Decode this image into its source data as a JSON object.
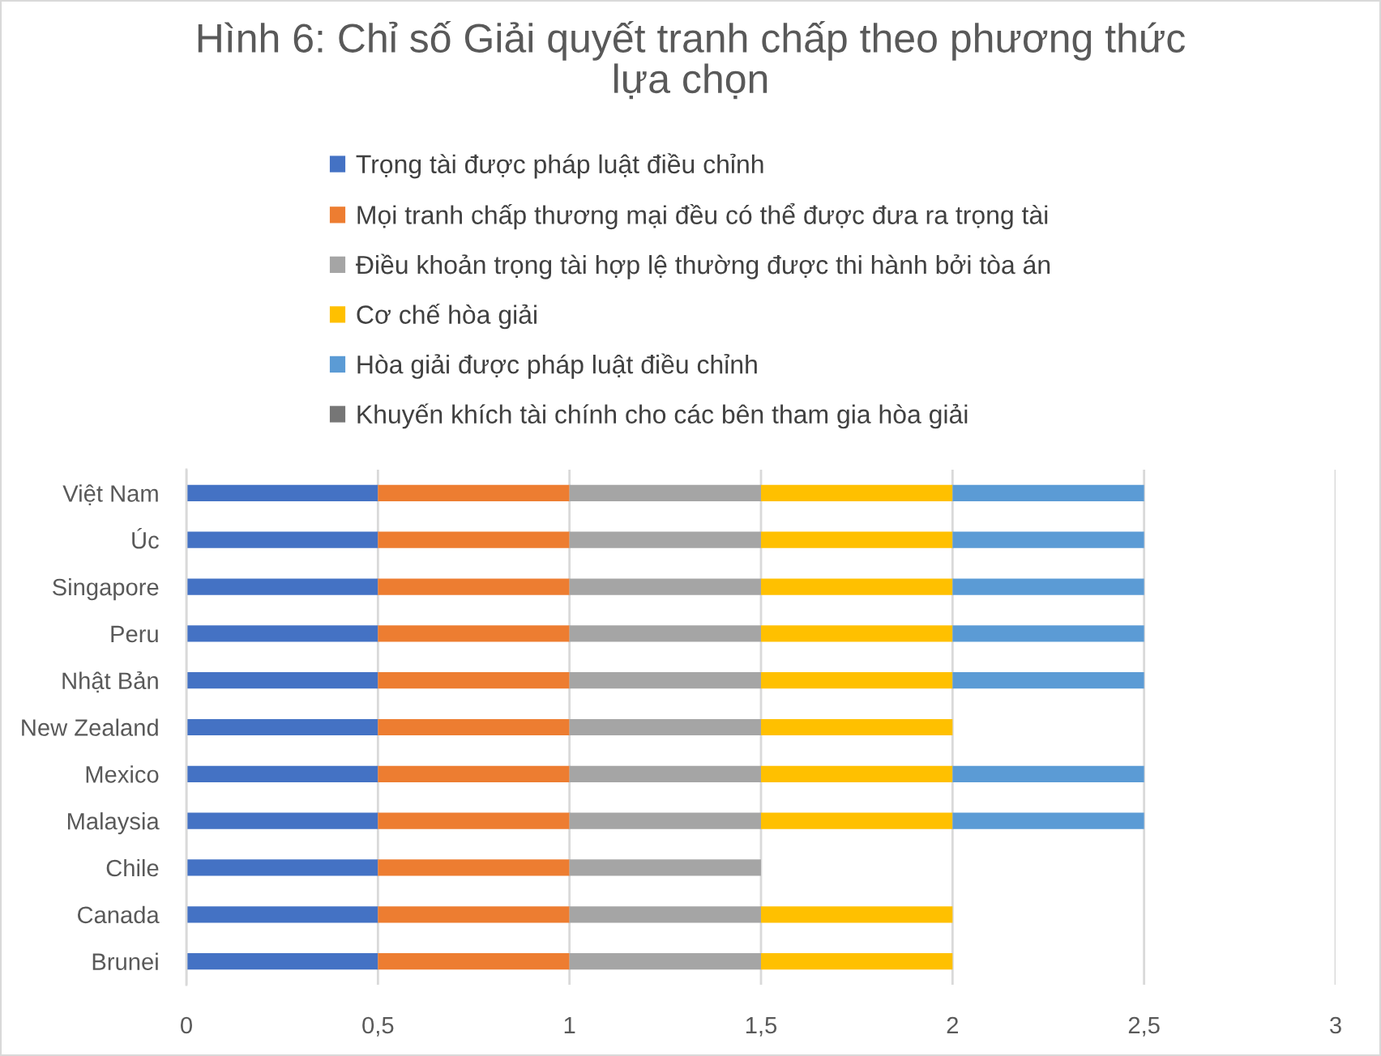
{
  "chart_data": {
    "type": "bar",
    "orientation": "horizontal",
    "stacked": true,
    "title": "Hình 6: Chỉ số Giải quyết tranh chấp theo phương thức lựa chọn",
    "categories": [
      "Việt Nam",
      "Úc",
      "Singapore",
      "Peru",
      "Nhật Bản",
      "New Zealand",
      "Mexico",
      "Malaysia",
      "Chile",
      "Canada",
      "Brunei"
    ],
    "series": [
      {
        "name": "Trọng tài được pháp luật điều chỉnh",
        "color": "#4472c4",
        "values": [
          0.5,
          0.5,
          0.5,
          0.5,
          0.5,
          0.5,
          0.5,
          0.5,
          0.5,
          0.5,
          0.5
        ]
      },
      {
        "name": "Mọi tranh chấp thương mại đều có thể được đưa ra trọng tài",
        "color": "#ed7d31",
        "values": [
          0.5,
          0.5,
          0.5,
          0.5,
          0.5,
          0.5,
          0.5,
          0.5,
          0.5,
          0.5,
          0.5
        ]
      },
      {
        "name": "Điều khoản trọng tài hợp lệ thường được thi hành bởi tòa án",
        "color": "#a5a5a5",
        "values": [
          0.5,
          0.5,
          0.5,
          0.5,
          0.5,
          0.5,
          0.5,
          0.5,
          0.5,
          0.5,
          0.5
        ]
      },
      {
        "name": "Cơ chế hòa giải",
        "color": "#ffc000",
        "values": [
          0.5,
          0.5,
          0.5,
          0.5,
          0.5,
          0.5,
          0.5,
          0.5,
          0,
          0.5,
          0.5
        ]
      },
      {
        "name": "Hòa giải được pháp luật điều chỉnh",
        "color": "#5b9bd5",
        "values": [
          0.5,
          0.5,
          0.5,
          0.5,
          0.5,
          0,
          0.5,
          0.5,
          0,
          0,
          0
        ]
      },
      {
        "name": "Khuyến khích tài chính cho các bên tham gia hòa giải",
        "color": "#767676",
        "values": [
          0,
          0,
          0,
          0,
          0,
          0,
          0,
          0,
          0,
          0,
          0
        ]
      }
    ],
    "xlim": [
      0,
      3
    ],
    "xticks": [
      0,
      {
        "value": 0.5,
        "label": "0,5"
      },
      1,
      {
        "value": 1.5,
        "label": "1,5"
      },
      2,
      {
        "value": 2.5,
        "label": "2,5"
      },
      3
    ],
    "grid": "x",
    "legend": "top"
  }
}
